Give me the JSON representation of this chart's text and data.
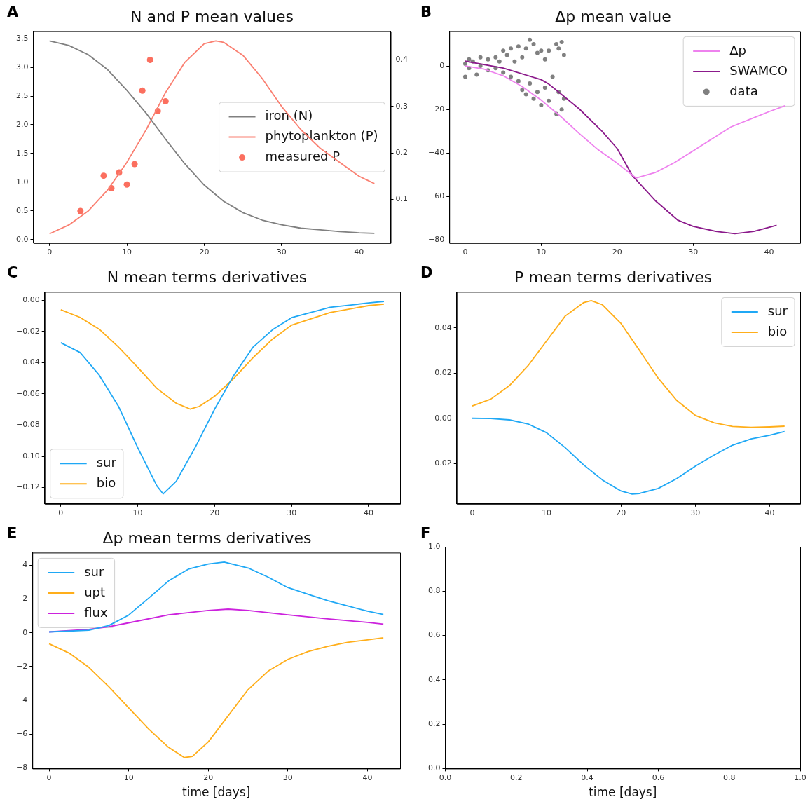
{
  "chart_data": [
    {
      "type": "line",
      "title": "N and P mean values",
      "annotations": [
        "A"
      ],
      "legend": "right",
      "xlim": [
        -2.1,
        44.1
      ],
      "xticks": [
        0,
        10,
        20,
        30,
        40
      ],
      "ylim": [
        -0.06,
        3.63
      ],
      "yticks": [
        {
          "value": 0,
          "label": "0.0"
        },
        0.5,
        {
          "value": 1,
          "label": "1.0"
        },
        1.5,
        {
          "value": 2,
          "label": "2.0"
        },
        2.5,
        {
          "value": 3,
          "label": "3.0"
        },
        3.5
      ],
      "y2lim": [
        0.006,
        0.462
      ],
      "y2ticks": [
        0.1,
        0.2,
        0.3,
        0.4
      ],
      "series": [
        {
          "name": "iron (N)",
          "color": "#808080",
          "x": [
            0,
            2.5,
            5,
            7.5,
            10,
            12.5,
            15,
            17.5,
            20,
            22.5,
            25,
            27.5,
            30,
            32.5,
            35,
            37.5,
            40,
            42
          ],
          "values": [
            3.46,
            3.38,
            3.22,
            2.96,
            2.6,
            2.2,
            1.75,
            1.32,
            0.95,
            0.67,
            0.47,
            0.34,
            0.26,
            0.2,
            0.17,
            0.14,
            0.12,
            0.11
          ]
        },
        {
          "name": "phytoplankton (P)",
          "color": "#fa8072",
          "axis": "y2",
          "x": [
            0,
            2.5,
            5,
            7.5,
            10,
            12.5,
            15,
            17.5,
            20,
            21.5,
            22.5,
            25,
            27.5,
            30,
            32.5,
            35,
            37.5,
            40,
            42
          ],
          "values": [
            0.026,
            0.045,
            0.075,
            0.12,
            0.18,
            0.25,
            0.33,
            0.395,
            0.435,
            0.441,
            0.438,
            0.41,
            0.36,
            0.3,
            0.25,
            0.21,
            0.18,
            0.15,
            0.134
          ]
        },
        {
          "name": "measured P",
          "type": "scatter",
          "marker": "circle",
          "color": "#fb6f5f",
          "axis": "y2",
          "x": [
            4,
            7,
            8,
            9,
            10,
            11,
            12,
            13,
            14,
            15
          ],
          "values": [
            0.075,
            0.151,
            0.124,
            0.158,
            0.132,
            0.176,
            0.334,
            0.4,
            0.29,
            0.311
          ]
        }
      ]
    },
    {
      "type": "line",
      "title": "Δp mean value",
      "annotations": [
        "B"
      ],
      "legend": "top right",
      "xlim": [
        -2.1,
        44.1
      ],
      "xticks": [
        0,
        10,
        20,
        30,
        40
      ],
      "ylim": [
        -81.4,
        16
      ],
      "yticks": [
        {
          "value": -80,
          "label": "−80"
        },
        {
          "value": -60,
          "label": "−60"
        },
        {
          "value": -40,
          "label": "−40"
        },
        {
          "value": -20,
          "label": "−20"
        },
        0
      ],
      "series": [
        {
          "name": "Δp",
          "color": "#ee82ee",
          "x": [
            0,
            2.5,
            5,
            7.5,
            10,
            12.5,
            15,
            17.5,
            20,
            22.5,
            25,
            27.5,
            30,
            32.5,
            35,
            37.5,
            40,
            42.1
          ],
          "values": [
            0,
            -1.5,
            -4.5,
            -9.5,
            -15.7,
            -23,
            -31,
            -38.5,
            -44.7,
            -51.5,
            -49,
            -44.5,
            -39,
            -33.5,
            -28,
            -24.5,
            -21,
            -18.3
          ]
        },
        {
          "name": "SWAMCO",
          "color": "#8b1a8b",
          "x": [
            0,
            5,
            10,
            11,
            13,
            15,
            18,
            20,
            22,
            25,
            28,
            30,
            33,
            35.5,
            38,
            41
          ],
          "values": [
            2.2,
            -1,
            -6.3,
            -8.3,
            -14,
            -19.7,
            -30,
            -37.9,
            -50.4,
            -61.8,
            -70.9,
            -73.7,
            -76,
            -77.1,
            -76,
            -73.2
          ]
        },
        {
          "name": "data",
          "type": "scatter",
          "marker": "circle",
          "color": "#808080",
          "x": [
            0,
            0,
            0.5,
            0.5,
            1,
            1.5,
            2,
            2,
            3,
            3,
            4,
            4,
            4.5,
            5,
            5,
            5.5,
            6,
            6,
            6.5,
            7,
            7,
            7.5,
            7.5,
            8,
            8,
            8.5,
            8.5,
            9,
            9,
            9.5,
            9.5,
            10,
            10,
            10.5,
            10.5,
            11,
            11,
            11.5,
            12,
            12,
            12.3,
            12.3,
            12.7,
            12.7,
            13,
            13
          ],
          "values": [
            1,
            -5,
            3,
            -1,
            2,
            -4,
            4,
            0,
            3,
            -2,
            4,
            -1,
            2,
            7,
            -3,
            5,
            8,
            -5,
            2,
            9,
            -7,
            4,
            -11,
            8,
            -13,
            12,
            -8,
            10,
            -15,
            6,
            -12,
            7,
            -18,
            3,
            -10,
            7,
            -16,
            -5,
            10,
            -22,
            8,
            -12,
            11,
            -20,
            5,
            -15
          ]
        }
      ]
    },
    {
      "type": "line",
      "title": "N mean terms derivatives",
      "annotations": [
        "C"
      ],
      "legend": "bottom left",
      "xlim": [
        -2.1,
        44.1
      ],
      "xticks": [
        0,
        10,
        20,
        30,
        40
      ],
      "ylim": [
        -0.1304,
        0.0053
      ],
      "yticks": [
        {
          "value": -0.12,
          "label": "−0.12"
        },
        {
          "value": -0.1,
          "label": "−0.10"
        },
        {
          "value": -0.08,
          "label": "−0.08"
        },
        {
          "value": -0.06,
          "label": "−0.06"
        },
        {
          "value": -0.04,
          "label": "−0.04"
        },
        {
          "value": -0.02,
          "label": "−0.02"
        },
        {
          "value": 0,
          "label": "0.00"
        }
      ],
      "series": [
        {
          "name": "sur",
          "color": "#1fa8f5",
          "x": [
            0,
            2.5,
            5,
            7.5,
            10,
            12.5,
            13.3,
            15,
            17.5,
            20,
            22.5,
            25,
            27.5,
            30,
            35,
            40,
            42
          ],
          "values": [
            -0.0272,
            -0.0335,
            -0.048,
            -0.068,
            -0.0944,
            -0.119,
            -0.124,
            -0.116,
            -0.094,
            -0.0697,
            -0.048,
            -0.03,
            -0.019,
            -0.0112,
            -0.0046,
            -0.0018,
            -0.0008
          ]
        },
        {
          "name": "bio",
          "color": "#ffae1a",
          "x": [
            0,
            2.5,
            5,
            7.5,
            10,
            12.5,
            15,
            16.8,
            18,
            20,
            22.5,
            25,
            27.5,
            30,
            35,
            40,
            42
          ],
          "values": [
            -0.0061,
            -0.011,
            -0.0186,
            -0.03,
            -0.043,
            -0.0565,
            -0.066,
            -0.0697,
            -0.068,
            -0.0615,
            -0.05,
            -0.0368,
            -0.025,
            -0.016,
            -0.0079,
            -0.0035,
            -0.0025
          ]
        }
      ]
    },
    {
      "type": "line",
      "title": "P mean terms derivatives",
      "annotations": [
        "D"
      ],
      "legend": "top right",
      "xlim": [
        -2.1,
        44.1
      ],
      "xticks": [
        0,
        10,
        20,
        30,
        40
      ],
      "ylim": [
        -0.0379,
        0.056
      ],
      "yticks": [
        {
          "value": -0.02,
          "label": "−0.02"
        },
        {
          "value": 0,
          "label": "0.00"
        },
        0.02,
        0.04
      ],
      "series": [
        {
          "name": "sur",
          "color": "#1fa8f5",
          "x": [
            0,
            2.5,
            5,
            7.5,
            10,
            12.5,
            15,
            17.5,
            20,
            21.5,
            22.5,
            25,
            27.5,
            30,
            32.5,
            35,
            37.5,
            40,
            42
          ],
          "values": [
            0,
            -0.0001,
            -0.0007,
            -0.0025,
            -0.0064,
            -0.013,
            -0.0207,
            -0.0273,
            -0.0322,
            -0.0336,
            -0.0333,
            -0.0311,
            -0.0267,
            -0.0212,
            -0.0163,
            -0.0119,
            -0.0091,
            -0.0075,
            -0.0059
          ]
        },
        {
          "name": "bio",
          "color": "#ffae1a",
          "x": [
            0,
            2.5,
            5,
            7.5,
            10,
            12.5,
            15,
            16,
            17.5,
            20,
            22.5,
            25,
            27.5,
            30,
            32.5,
            35,
            37.5,
            40,
            42
          ],
          "values": [
            0.0055,
            0.0085,
            0.0145,
            0.0233,
            0.0343,
            0.0453,
            0.0513,
            0.0521,
            0.0503,
            0.042,
            0.03,
            0.0178,
            0.0079,
            0.0013,
            -0.002,
            -0.0036,
            -0.004,
            -0.0038,
            -0.0035
          ]
        }
      ]
    },
    {
      "type": "line",
      "title": "Δp mean terms derivatives",
      "xlabel": "time [days]",
      "annotations": [
        "E"
      ],
      "legend": "top left",
      "xlim": [
        -2.1,
        44.1
      ],
      "xticks": [
        0,
        10,
        20,
        30,
        40
      ],
      "ylim": [
        -8.05,
        4.75
      ],
      "yticks": [
        {
          "value": -8,
          "label": "−8"
        },
        {
          "value": -6,
          "label": "−6"
        },
        {
          "value": -4,
          "label": "−4"
        },
        {
          "value": -2,
          "label": "−2"
        },
        0,
        2,
        4
      ],
      "series": [
        {
          "name": "sur",
          "color": "#1fa8f5",
          "x": [
            0,
            5,
            7.5,
            10,
            12.5,
            15,
            17.5,
            20,
            22,
            25,
            27.5,
            30,
            32.5,
            35,
            37.5,
            40,
            42
          ],
          "values": [
            0.05,
            0.15,
            0.43,
            1.05,
            2.05,
            3.07,
            3.77,
            4.08,
            4.19,
            3.84,
            3.3,
            2.68,
            2.29,
            1.9,
            1.59,
            1.28,
            1.08
          ]
        },
        {
          "name": "upt",
          "color": "#ffae1a",
          "x": [
            0,
            2.5,
            5,
            7.5,
            10,
            12.5,
            15,
            17,
            18,
            20,
            22.5,
            25,
            27.5,
            30,
            32.5,
            35,
            37.5,
            40,
            42
          ],
          "values": [
            -0.65,
            -1.2,
            -2.05,
            -3.2,
            -4.45,
            -5.7,
            -6.79,
            -7.4,
            -7.33,
            -6.47,
            -4.92,
            -3.37,
            -2.28,
            -1.58,
            -1.12,
            -0.81,
            -0.57,
            -0.42,
            -0.3
          ]
        },
        {
          "name": "flux",
          "color": "#cc22dd",
          "x": [
            0,
            5,
            7.5,
            10,
            15,
            20,
            22.5,
            25,
            30,
            35,
            40,
            42
          ],
          "values": [
            0.05,
            0.2,
            0.36,
            0.59,
            1.06,
            1.32,
            1.4,
            1.32,
            1.06,
            0.82,
            0.62,
            0.51
          ]
        }
      ]
    },
    {
      "type": "line",
      "xlabel": "time [days]",
      "annotations": [
        "F"
      ],
      "xlim": [
        0,
        1
      ],
      "xticks": [
        {
          "value": 0,
          "label": "0.0"
        },
        0.2,
        0.4,
        0.6,
        0.8,
        {
          "value": 1,
          "label": "1.0"
        }
      ],
      "ylim": [
        0,
        1
      ],
      "yticks": [
        {
          "value": 0,
          "label": "0.0"
        },
        0.2,
        0.4,
        0.6,
        0.8,
        {
          "value": 1,
          "label": "1.0"
        }
      ]
    }
  ]
}
